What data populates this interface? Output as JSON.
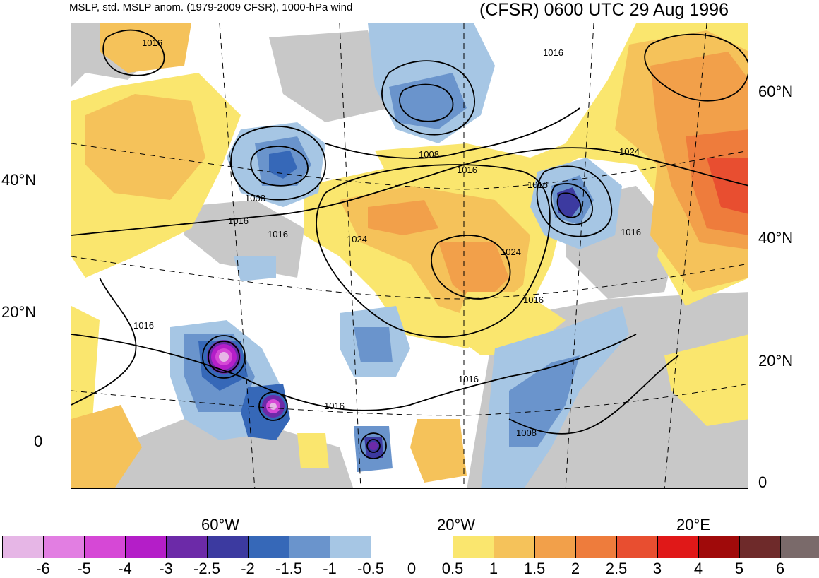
{
  "header": {
    "left_title": "MSLP, std. MSLP anom. (1979-2009 CFSR), 1000-hPa wind",
    "right_title": "(CFSR) 0600 UTC 29 Aug 1996"
  },
  "axes": {
    "left_lat_labels": [
      "40°N",
      "20°N",
      "0"
    ],
    "right_lat_labels": [
      "60°N",
      "40°N",
      "20°N",
      "0"
    ],
    "lon_labels": [
      "60°W",
      "20°W",
      "20°E"
    ]
  },
  "contour_labels": [
    "1016",
    "1016",
    "1008",
    "1016",
    "1016",
    "1024",
    "1024",
    "1016",
    "1016",
    "1016",
    "1024",
    "1016",
    "1016",
    "1016",
    "1008",
    "1008",
    "1016"
  ],
  "colorbar": {
    "ticks": [
      "-6",
      "-5",
      "-4",
      "-3",
      "-2.5",
      "-2",
      "-1.5",
      "-1",
      "-0.5",
      "0",
      "0.5",
      "1",
      "1.5",
      "2",
      "2.5",
      "3",
      "4",
      "5",
      "6"
    ],
    "colors": [
      "#e6b6e6",
      "#e27ee2",
      "#d648d6",
      "#b41ec8",
      "#6c2aa8",
      "#3c3aa0",
      "#3668b8",
      "#6a94cc",
      "#a6c6e4",
      "#ffffff",
      "#ffffff",
      "#fae66e",
      "#f5c25a",
      "#f2a04a",
      "#ee7c3c",
      "#e84e30",
      "#e01818",
      "#a00a0a",
      "#6e2a2a",
      "#7a6a6a"
    ]
  },
  "field_colors": {
    "land_gray": "#c8c8c8",
    "ocean": "#ffffff",
    "contour": "#000000"
  }
}
